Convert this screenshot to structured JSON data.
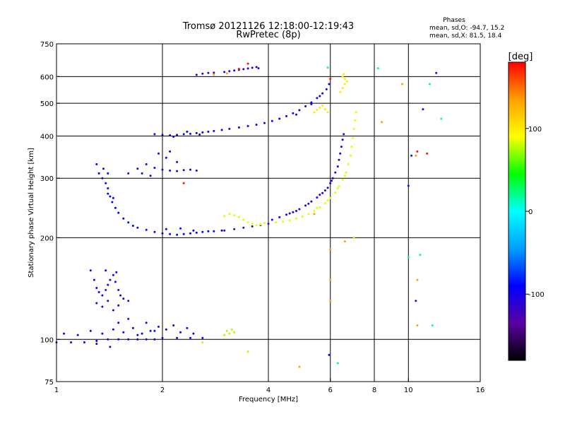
{
  "chart_data": {
    "type": "scatter",
    "title": "Tromsø 20121126 12:18:00-12:19:43",
    "subtitle": "RwPretec (8p)",
    "stats": {
      "heading": "Phases",
      "line_o": "mean, sd,O: -94.7, 15.2",
      "line_x": "mean, sd,X:  81.5, 18.4"
    },
    "xlabel": "Frequency [MHz]",
    "ylabel": "Stationary phase Virtual Height [km]",
    "x_scale": "log",
    "y_scale": "log",
    "xlim": [
      1,
      16
    ],
    "ylim": [
      75,
      750
    ],
    "x_ticks": [
      1,
      2,
      4,
      6,
      8,
      10,
      16
    ],
    "y_ticks": [
      75,
      100,
      200,
      300,
      400,
      500,
      600,
      750
    ],
    "x_grid": [
      2,
      4,
      6,
      8,
      10
    ],
    "y_grid": [
      100,
      200,
      300,
      400,
      500,
      600
    ],
    "grid": true,
    "colorbar": {
      "label": "[deg]",
      "min": -180,
      "max": 180,
      "ticks": [
        100,
        0,
        -100
      ],
      "colors": [
        "#000000",
        "#5a00a0",
        "#0000ff",
        "#00a0ff",
        "#00ffff",
        "#00ff00",
        "#ffff00",
        "#ffa000",
        "#ff0000"
      ]
    },
    "series": [
      {
        "phase": -95,
        "points": [
          [
            1.0,
            98
          ],
          [
            1.1,
            98
          ],
          [
            1.2,
            98
          ],
          [
            1.3,
            99
          ],
          [
            1.4,
            100
          ],
          [
            1.5,
            100
          ],
          [
            1.6,
            100
          ],
          [
            1.7,
            100
          ],
          [
            1.8,
            100
          ],
          [
            1.9,
            100
          ],
          [
            2.0,
            101
          ],
          [
            2.2,
            101
          ],
          [
            2.4,
            101
          ],
          [
            2.6,
            101
          ],
          [
            1.05,
            104
          ],
          [
            1.15,
            103
          ],
          [
            1.25,
            106
          ],
          [
            1.35,
            104
          ],
          [
            1.45,
            107
          ],
          [
            1.55,
            105
          ],
          [
            1.65,
            108
          ],
          [
            1.75,
            104
          ],
          [
            1.85,
            106
          ],
          [
            1.95,
            109
          ],
          [
            2.05,
            107
          ],
          [
            2.15,
            110
          ],
          [
            2.25,
            105
          ],
          [
            2.35,
            108
          ],
          [
            2.45,
            104
          ],
          [
            1.3,
            97
          ],
          [
            1.42,
            95
          ],
          [
            1.5,
            112
          ],
          [
            1.6,
            115
          ],
          [
            1.7,
            103
          ],
          [
            1.8,
            112
          ],
          [
            1.9,
            106
          ]
        ]
      },
      {
        "phase": -100,
        "points": [
          [
            1.25,
            160
          ],
          [
            1.28,
            150
          ],
          [
            1.3,
            142
          ],
          [
            1.32,
            138
          ],
          [
            1.35,
            135
          ],
          [
            1.38,
            140
          ],
          [
            1.4,
            145
          ],
          [
            1.42,
            150
          ],
          [
            1.45,
            155
          ],
          [
            1.47,
            148
          ],
          [
            1.5,
            140
          ],
          [
            1.52,
            135
          ],
          [
            1.55,
            132
          ],
          [
            1.35,
            125
          ],
          [
            1.4,
            130
          ],
          [
            1.45,
            122
          ],
          [
            1.3,
            128
          ],
          [
            1.5,
            126
          ],
          [
            1.6,
            130
          ],
          [
            1.38,
            160
          ],
          [
            1.48,
            158
          ]
        ]
      },
      {
        "phase": -90,
        "points": [
          [
            1.32,
            310
          ],
          [
            1.35,
            300
          ],
          [
            1.38,
            290
          ],
          [
            1.4,
            280
          ],
          [
            1.42,
            265
          ],
          [
            1.44,
            255
          ],
          [
            1.47,
            245
          ],
          [
            1.5,
            237
          ],
          [
            1.55,
            228
          ],
          [
            1.6,
            222
          ],
          [
            1.65,
            217
          ],
          [
            1.7,
            214
          ],
          [
            1.8,
            211
          ],
          [
            1.9,
            208
          ],
          [
            2.0,
            206
          ],
          [
            2.1,
            205
          ],
          [
            2.2,
            204
          ],
          [
            2.3,
            205
          ],
          [
            2.4,
            206
          ],
          [
            2.5,
            207
          ],
          [
            2.6,
            208
          ],
          [
            2.7,
            209
          ],
          [
            2.8,
            209
          ],
          [
            2.95,
            210
          ],
          [
            1.3,
            330
          ],
          [
            1.4,
            270
          ],
          [
            1.45,
            262
          ],
          [
            2.05,
            212
          ],
          [
            2.25,
            213
          ],
          [
            2.45,
            210
          ],
          [
            1.36,
            320
          ],
          [
            1.4,
            310
          ]
        ]
      },
      {
        "phase": -120,
        "points": [
          [
            3.0,
            210
          ],
          [
            3.2,
            212
          ],
          [
            3.4,
            214
          ],
          [
            3.6,
            216
          ],
          [
            3.8,
            218
          ],
          [
            4.0,
            220
          ]
        ]
      },
      {
        "phase": -100,
        "points": [
          [
            4.1,
            226
          ],
          [
            4.3,
            230
          ],
          [
            4.5,
            234
          ],
          [
            4.7,
            238
          ],
          [
            4.9,
            243
          ],
          [
            5.1,
            249
          ],
          [
            5.3,
            256
          ],
          [
            5.5,
            263
          ],
          [
            5.7,
            271
          ],
          [
            5.9,
            281
          ],
          [
            6.0,
            290
          ],
          [
            6.1,
            300
          ],
          [
            6.2,
            312
          ],
          [
            6.3,
            325
          ],
          [
            6.35,
            340
          ],
          [
            6.4,
            355
          ],
          [
            6.45,
            372
          ],
          [
            6.5,
            390
          ],
          [
            6.55,
            405
          ],
          [
            5.2,
            252
          ],
          [
            5.6,
            268
          ],
          [
            5.8,
            276
          ],
          [
            6.05,
            295
          ],
          [
            4.6,
            236
          ],
          [
            4.8,
            240
          ]
        ]
      },
      {
        "phase": -105,
        "points": [
          [
            1.6,
            310
          ],
          [
            1.7,
            320
          ],
          [
            1.8,
            330
          ],
          [
            1.9,
            322
          ],
          [
            2.0,
            318
          ],
          [
            2.1,
            316
          ],
          [
            2.2,
            315
          ],
          [
            2.3,
            317
          ],
          [
            2.4,
            318
          ],
          [
            2.5,
            316
          ],
          [
            1.95,
            355
          ],
          [
            2.05,
            345
          ],
          [
            2.1,
            360
          ],
          [
            2.2,
            335
          ],
          [
            1.75,
            310
          ],
          [
            1.85,
            305
          ]
        ]
      },
      {
        "phase": -95,
        "points": [
          [
            1.9,
            405
          ],
          [
            2.0,
            403
          ],
          [
            2.1,
            402
          ],
          [
            2.2,
            403
          ],
          [
            2.3,
            405
          ],
          [
            2.4,
            406
          ],
          [
            2.5,
            408
          ],
          [
            2.6,
            410
          ],
          [
            2.7,
            412
          ],
          [
            2.8,
            414
          ],
          [
            2.95,
            417
          ],
          [
            3.1,
            420
          ],
          [
            3.3,
            424
          ],
          [
            3.5,
            428
          ],
          [
            3.7,
            432
          ],
          [
            3.9,
            437
          ],
          [
            4.1,
            443
          ],
          [
            4.3,
            450
          ],
          [
            4.5,
            458
          ],
          [
            4.7,
            467
          ],
          [
            4.9,
            477
          ],
          [
            5.1,
            490
          ],
          [
            5.3,
            503
          ],
          [
            5.5,
            518
          ],
          [
            5.7,
            535
          ],
          [
            5.85,
            550
          ],
          [
            5.95,
            570
          ],
          [
            5.3,
            497
          ],
          [
            5.6,
            525
          ],
          [
            4.8,
            463
          ],
          [
            2.15,
            398
          ],
          [
            2.35,
            412
          ],
          [
            2.55,
            404
          ]
        ]
      },
      {
        "phase": -110,
        "points": [
          [
            2.5,
            607
          ],
          [
            2.6,
            612
          ],
          [
            2.7,
            615
          ],
          [
            2.8,
            616
          ],
          [
            3.0,
            619
          ],
          [
            3.1,
            622
          ],
          [
            3.2,
            625
          ],
          [
            3.3,
            628
          ],
          [
            3.4,
            631
          ],
          [
            3.5,
            634
          ],
          [
            3.6,
            637
          ],
          [
            3.7,
            640
          ],
          [
            3.75,
            635
          ]
        ]
      },
      {
        "phase": -85,
        "points": [
          [
            5.95,
            90
          ],
          [
            10.5,
            130
          ],
          [
            10.2,
            350
          ],
          [
            10.0,
            285
          ],
          [
            12.0,
            615
          ],
          [
            11.0,
            480
          ]
        ]
      },
      {
        "phase": 85,
        "points": [
          [
            3.0,
            232
          ],
          [
            3.1,
            235
          ],
          [
            3.2,
            233
          ],
          [
            3.3,
            230
          ],
          [
            3.4,
            226
          ],
          [
            3.5,
            222
          ],
          [
            3.6,
            220
          ],
          [
            3.7,
            218
          ],
          [
            3.8,
            219
          ],
          [
            3.9,
            221
          ],
          [
            4.2,
            222
          ],
          [
            4.4,
            223
          ],
          [
            4.6,
            225
          ],
          [
            4.8,
            228
          ],
          [
            5.0,
            231
          ],
          [
            5.2,
            235
          ],
          [
            5.4,
            240
          ],
          [
            5.6,
            246
          ],
          [
            5.8,
            253
          ],
          [
            6.0,
            262
          ],
          [
            6.2,
            272
          ],
          [
            6.35,
            284
          ],
          [
            6.5,
            297
          ],
          [
            6.65,
            312
          ],
          [
            6.75,
            330
          ],
          [
            6.85,
            350
          ],
          [
            6.9,
            372
          ],
          [
            6.95,
            395
          ],
          [
            7.0,
            420
          ],
          [
            7.05,
            445
          ],
          [
            7.1,
            470
          ],
          [
            5.5,
            245
          ],
          [
            5.9,
            258
          ],
          [
            6.3,
            280
          ],
          [
            6.6,
            305
          ]
        ]
      },
      {
        "phase": 100,
        "points": [
          [
            5.4,
            470
          ],
          [
            5.5,
            478
          ],
          [
            5.6,
            485
          ],
          [
            5.7,
            492
          ],
          [
            5.8,
            480
          ],
          [
            5.9,
            470
          ],
          [
            6.4,
            540
          ],
          [
            6.5,
            555
          ],
          [
            6.6,
            570
          ],
          [
            6.5,
            600
          ],
          [
            6.6,
            590
          ],
          [
            6.7,
            580
          ],
          [
            6.55,
            610
          ]
        ]
      },
      {
        "phase": 75,
        "points": [
          [
            3.0,
            103
          ],
          [
            3.05,
            106
          ],
          [
            3.1,
            104
          ],
          [
            3.15,
            107
          ],
          [
            3.2,
            105
          ],
          [
            2.6,
            98
          ],
          [
            3.5,
            92
          ],
          [
            7.0,
            200
          ]
        ]
      },
      {
        "phase": 135,
        "points": [
          [
            2.8,
            608
          ],
          [
            3.05,
            613
          ],
          [
            5.4,
            235
          ],
          [
            6.0,
            185
          ],
          [
            6.6,
            195
          ],
          [
            6.0,
            150
          ],
          [
            6.0,
            130
          ],
          [
            4.9,
            83
          ],
          [
            10.6,
            110
          ],
          [
            10.6,
            150
          ],
          [
            8.4,
            440
          ],
          [
            9.6,
            570
          ],
          [
            10.5,
            350
          ]
        ]
      },
      {
        "phase": 175,
        "points": [
          [
            3.5,
            655
          ],
          [
            3.3,
            632
          ],
          [
            2.3,
            290
          ],
          [
            10.6,
            360
          ],
          [
            11.3,
            355
          ],
          [
            6.0,
            590
          ]
        ]
      },
      {
        "phase": 20,
        "points": [
          [
            5.9,
            638
          ],
          [
            8.2,
            635
          ],
          [
            6.3,
            85
          ],
          [
            11.7,
            110
          ],
          [
            10.0,
            175
          ],
          [
            10.8,
            178
          ],
          [
            12.4,
            450
          ],
          [
            11.5,
            570
          ]
        ]
      }
    ]
  }
}
